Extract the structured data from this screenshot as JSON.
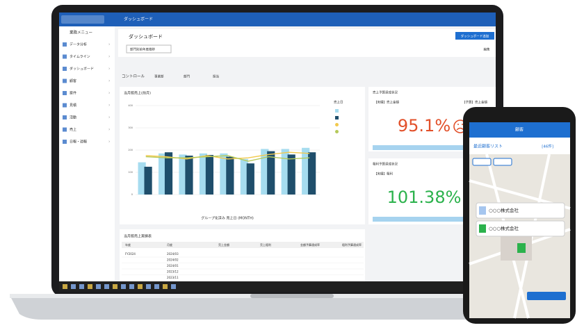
{
  "header": {
    "app_title": "ダッシュボード"
  },
  "sidebar": {
    "title": "業務メニュー",
    "items": [
      "データ分析",
      "タイムライン",
      "ダッシュボード",
      "顧客",
      "案件",
      "見積",
      "活動",
      "売上",
      "日報・週報"
    ]
  },
  "dashboard": {
    "title": "ダッシュボード",
    "add_button": "ダッシュボード追加",
    "filter": "部門別前年度推移",
    "edit_button": "編集",
    "control_label": "コントロール",
    "controls": [
      "事業部",
      "部門",
      "担当"
    ]
  },
  "chart_data": {
    "type": "bar",
    "title": "当月販売上(前月)",
    "xlabel": "グループ化済み 売上日 (MONTH)",
    "legend_title": "売上日",
    "categories": [
      null,
      null,
      null,
      null,
      null,
      null,
      null,
      null,
      null
    ],
    "series": [
      {
        "color": "#a6dcef",
        "values": [
          145,
          185,
          180,
          185,
          185,
          160,
          205,
          205,
          210
        ]
      },
      {
        "color": "#1f4e6b",
        "values": [
          125,
          190,
          175,
          178,
          170,
          140,
          195,
          180,
          190
        ]
      },
      {
        "type": "line",
        "color": "#f2c94c",
        "values": [
          175,
          170,
          160,
          175,
          160,
          165,
          180,
          190,
          185
        ]
      },
      {
        "type": "line",
        "color": "#b5c95a",
        "values": [
          170,
          165,
          165,
          170,
          175,
          150,
          170,
          160,
          165
        ]
      }
    ],
    "ylim": [
      0,
      400
    ],
    "yticks": [
      0,
      100,
      200,
      300,
      400
    ],
    "grid": true
  },
  "kpis": [
    {
      "title": "売上予算達成状況",
      "label_left": "【実績】売上金額",
      "label_right": "【予算】売上金額",
      "value": "95.1%",
      "color": "#e2502a"
    },
    {
      "title": "粗利予算達成状況",
      "label_left": "【実績】粗利",
      "value": "101.38%",
      "color": "#2bb24c"
    }
  ],
  "table": {
    "title": "当月販売上実績表",
    "columns": [
      "年度",
      "月度",
      "売上金額",
      "売上粗利",
      "金額予算達成率",
      "粗利予算達成率"
    ],
    "fiscal_year": "FY2024",
    "months": [
      "2024/03",
      "2024/02",
      "2024/01",
      "2023/12",
      "2023/11"
    ]
  },
  "phone": {
    "title": "顧客",
    "list_title": "最近顧客リスト",
    "count": "[46件]",
    "companies": [
      "○○○株式会社",
      "○○○株式会社"
    ]
  }
}
